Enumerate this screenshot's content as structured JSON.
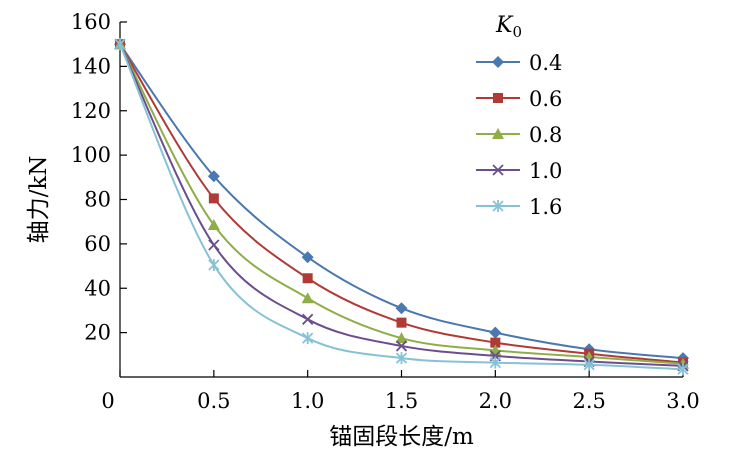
{
  "chart_data": {
    "type": "line",
    "title": "",
    "xlabel": "锚固段长度/m",
    "ylabel": "轴力/kN",
    "x": [
      0,
      0.5,
      1.0,
      1.5,
      2.0,
      2.5,
      3.0
    ],
    "x_tick_labels": [
      "0",
      "0.5",
      "1.0",
      "1.5",
      "2.0",
      "2.5",
      "3.0"
    ],
    "y_tick_labels": [
      "20",
      "40",
      "60",
      "80",
      "100",
      "120",
      "140",
      "160"
    ],
    "y_ticks": [
      20,
      40,
      60,
      80,
      100,
      120,
      140,
      160
    ],
    "xlim": [
      0,
      3.0
    ],
    "ylim": [
      0,
      160
    ],
    "grid": false,
    "legend_title": "K",
    "legend_title_sub": "0",
    "legend_position": "top-right",
    "series": [
      {
        "name": "0.4",
        "color": "#4a78b0",
        "marker": "diamond",
        "values": [
          150,
          90.5,
          54,
          31,
          20,
          12.5,
          8.5
        ]
      },
      {
        "name": "0.6",
        "color": "#b03a35",
        "marker": "square",
        "values": [
          150,
          80.5,
          44.5,
          24.5,
          15.5,
          10.5,
          6.5
        ]
      },
      {
        "name": "0.8",
        "color": "#8fae48",
        "marker": "triangle",
        "values": [
          150,
          68.5,
          35.5,
          17.5,
          12,
          9,
          6
        ]
      },
      {
        "name": "1.0",
        "color": "#6b4e8e",
        "marker": "x",
        "values": [
          150,
          59.5,
          26,
          14,
          9.5,
          7,
          5
        ]
      },
      {
        "name": "1.6",
        "color": "#86c2d6",
        "marker": "star",
        "values": [
          150,
          50.5,
          17.5,
          8.5,
          6.5,
          5.5,
          3.5
        ]
      }
    ]
  }
}
